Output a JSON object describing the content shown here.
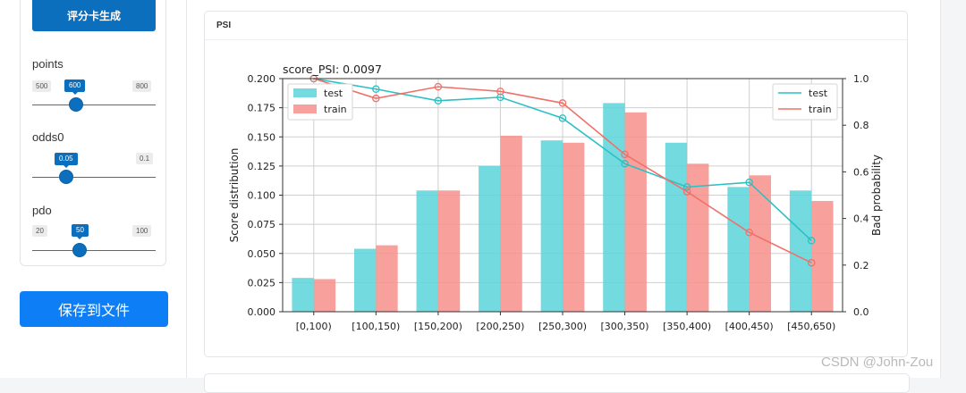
{
  "sidebar": {
    "generate_button": "评分卡生成",
    "save_button": "保存到文件",
    "sliders": [
      {
        "label": "points",
        "min": "500",
        "max": "800",
        "value": "600",
        "fraction": 0.333
      },
      {
        "label": "odds0",
        "min": "0.05",
        "max": "0.1",
        "value": "0.05",
        "fraction": 0.0
      },
      {
        "label": "pdo",
        "min": "20",
        "max": "100",
        "value": "50",
        "fraction": 0.375
      }
    ]
  },
  "main": {
    "card_title": "PSI"
  },
  "watermark": "CSDN @John-Zou",
  "colors": {
    "test": "#5ad5d9",
    "train": "#f7908b",
    "test_line": "#2cc0c4",
    "train_line": "#f0716a",
    "accent": "#0b6fbd"
  },
  "chart_data": {
    "type": "bar",
    "title": "score_PSI: 0.0097",
    "xlabel": "",
    "ylabel": "Score distribution",
    "y2label": "Bad probability",
    "categories": [
      "[0,100)",
      "[100,150)",
      "[150,200)",
      "[200,250)",
      "[250,300)",
      "[300,350)",
      "[350,400)",
      "[400,450)",
      "[450,650)"
    ],
    "ylim": [
      0,
      0.2
    ],
    "y2lim": [
      0,
      1.0
    ],
    "yticks": [
      "0.000",
      "0.025",
      "0.050",
      "0.075",
      "0.100",
      "0.125",
      "0.150",
      "0.175",
      "0.200"
    ],
    "y2ticks": [
      "0.0",
      "0.2",
      "0.4",
      "0.6",
      "0.8",
      "1.0"
    ],
    "grid": true,
    "series": [
      {
        "name": "test",
        "kind": "bar",
        "values": [
          0.029,
          0.054,
          0.104,
          0.125,
          0.147,
          0.179,
          0.145,
          0.107,
          0.104
        ]
      },
      {
        "name": "train",
        "kind": "bar",
        "values": [
          0.028,
          0.057,
          0.104,
          0.151,
          0.145,
          0.171,
          0.127,
          0.117,
          0.095
        ]
      },
      {
        "name": "test",
        "kind": "line",
        "axis": "right",
        "values": [
          1.0,
          0.955,
          0.905,
          0.92,
          0.83,
          0.635,
          0.535,
          0.555,
          0.305
        ]
      },
      {
        "name": "train",
        "kind": "line",
        "axis": "right",
        "values": [
          1.0,
          0.915,
          0.965,
          0.945,
          0.895,
          0.675,
          0.515,
          0.34,
          0.21
        ]
      }
    ],
    "legend_left": [
      "test",
      "train"
    ],
    "legend_right": [
      "test",
      "train"
    ]
  }
}
